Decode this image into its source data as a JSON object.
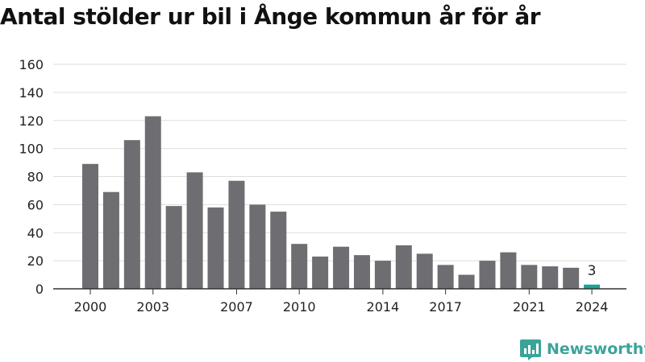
{
  "chart_data": {
    "type": "bar",
    "title": "Antal stölder ur bil i Ånge kommun år för år",
    "categories": [
      "2000",
      "2001",
      "2002",
      "2003",
      "2004",
      "2005",
      "2006",
      "2007",
      "2008",
      "2009",
      "2010",
      "2011",
      "2012",
      "2013",
      "2014",
      "2015",
      "2016",
      "2017",
      "2018",
      "2019",
      "2020",
      "2021",
      "2022",
      "2023",
      "2024"
    ],
    "values": [
      89,
      69,
      106,
      123,
      59,
      83,
      58,
      77,
      60,
      55,
      32,
      23,
      30,
      24,
      20,
      31,
      25,
      17,
      10,
      20,
      26,
      17,
      16,
      15,
      3
    ],
    "x_tick_labels": [
      "2000",
      "2003",
      "2007",
      "2010",
      "2014",
      "2017",
      "2021",
      "2024"
    ],
    "y_ticks": [
      "0",
      "20",
      "40",
      "60",
      "80",
      "100",
      "120",
      "140",
      "160"
    ],
    "ylim": [
      0,
      160
    ],
    "grid": true,
    "highlight": {
      "category": "2024",
      "label": "3"
    },
    "colors": {
      "bar": "#6e6d72",
      "highlight": "#1aa396",
      "grid": "#dddddd",
      "axis": "#333333"
    }
  },
  "brand": {
    "name": "Newsworthy",
    "icon": "newsworthy-logo-icon",
    "color": "#3aa49a"
  }
}
